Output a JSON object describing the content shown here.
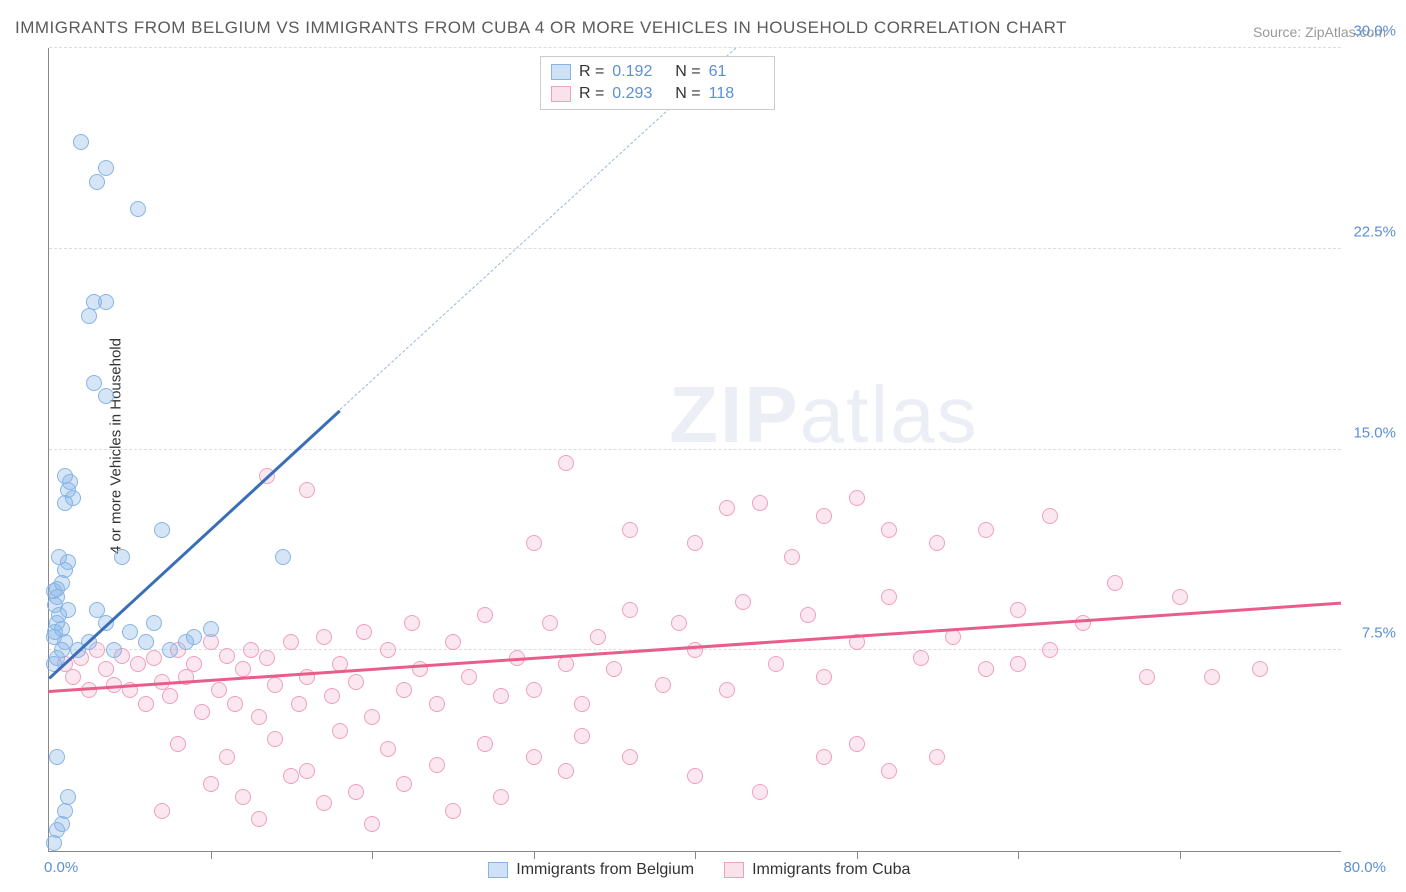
{
  "title": "IMMIGRANTS FROM BELGIUM VS IMMIGRANTS FROM CUBA 4 OR MORE VEHICLES IN HOUSEHOLD CORRELATION CHART",
  "source": "Source: ZipAtlas.com",
  "watermark": {
    "prefix": "ZIP",
    "suffix": "atlas"
  },
  "chart": {
    "type": "scatter",
    "xlim": [
      0,
      80
    ],
    "ylim": [
      0,
      30
    ],
    "x_min_label": "0.0%",
    "x_max_label": "80.0%",
    "y_ticks": [
      7.5,
      15.0,
      22.5,
      30.0
    ],
    "y_tick_labels": [
      "7.5%",
      "15.0%",
      "22.5%",
      "30.0%"
    ],
    "x_tick_step": 10,
    "y_axis_title": "4 or more Vehicles in Household",
    "background_color": "#ffffff",
    "grid_color": "#dddddd",
    "axis_color": "#888888",
    "label_color": "#5b8fd6",
    "label_fontsize": 15,
    "title_color": "#5a5a5a",
    "title_fontsize": 17
  },
  "series": {
    "belgium": {
      "label": "Immigrants from Belgium",
      "R": "0.192",
      "N": "61",
      "marker_fill": "rgba(135,180,230,0.35)",
      "marker_stroke": "#87b4e6",
      "trend_color": "#3a6fb7",
      "trend_dash_color": "#9ab8dc",
      "trend_solid": {
        "x1": 0,
        "y1": 6.5,
        "x2": 18,
        "y2": 16.5
      },
      "trend_dash": {
        "x1": 18,
        "y1": 16.5,
        "x2": 42.5,
        "y2": 30
      },
      "points": [
        [
          0.3,
          0.3
        ],
        [
          0.5,
          0.8
        ],
        [
          0.8,
          1.0
        ],
        [
          1.0,
          1.5
        ],
        [
          1.2,
          2.0
        ],
        [
          0.5,
          3.5
        ],
        [
          0.3,
          7.0
        ],
        [
          0.5,
          7.2
        ],
        [
          0.8,
          7.5
        ],
        [
          1.0,
          7.8
        ],
        [
          0.5,
          8.5
        ],
        [
          0.6,
          8.8
        ],
        [
          0.4,
          8.2
        ],
        [
          0.3,
          8.0
        ],
        [
          0.8,
          8.3
        ],
        [
          1.2,
          9.0
        ],
        [
          0.5,
          9.5
        ],
        [
          0.8,
          10.0
        ],
        [
          1.0,
          10.5
        ],
        [
          1.2,
          10.8
        ],
        [
          0.6,
          11.0
        ],
        [
          0.5,
          9.8
        ],
        [
          0.4,
          9.2
        ],
        [
          0.3,
          9.7
        ],
        [
          1.0,
          13.0
        ],
        [
          1.2,
          13.5
        ],
        [
          1.5,
          13.2
        ],
        [
          1.0,
          14.0
        ],
        [
          1.3,
          13.8
        ],
        [
          1.8,
          7.5
        ],
        [
          2.5,
          7.8
        ],
        [
          3.0,
          9.0
        ],
        [
          3.5,
          8.5
        ],
        [
          4.0,
          7.5
        ],
        [
          5.0,
          8.2
        ],
        [
          4.5,
          11.0
        ],
        [
          6.0,
          7.8
        ],
        [
          6.5,
          8.5
        ],
        [
          7.0,
          12.0
        ],
        [
          7.5,
          7.5
        ],
        [
          8.5,
          7.8
        ],
        [
          9.0,
          8.0
        ],
        [
          10.0,
          8.3
        ],
        [
          3.5,
          17.0
        ],
        [
          2.8,
          17.5
        ],
        [
          2.5,
          20.0
        ],
        [
          2.8,
          20.5
        ],
        [
          3.5,
          20.5
        ],
        [
          3.0,
          25.0
        ],
        [
          3.5,
          25.5
        ],
        [
          5.5,
          24.0
        ],
        [
          2.0,
          26.5
        ],
        [
          14.5,
          11.0
        ]
      ]
    },
    "cuba": {
      "label": "Immigrants from Cuba",
      "R": "0.293",
      "N": "118",
      "marker_fill": "rgba(240,160,190,0.25)",
      "marker_stroke": "#f0a0be",
      "trend_color": "#e85d8a",
      "trend": {
        "x1": 0,
        "y1": 6.0,
        "x2": 80,
        "y2": 9.3
      },
      "points": [
        [
          1.0,
          7.0
        ],
        [
          1.5,
          6.5
        ],
        [
          2.0,
          7.2
        ],
        [
          2.5,
          6.0
        ],
        [
          3.0,
          7.5
        ],
        [
          3.5,
          6.8
        ],
        [
          4.0,
          6.2
        ],
        [
          4.5,
          7.3
        ],
        [
          5.0,
          6.0
        ],
        [
          5.5,
          7.0
        ],
        [
          6.0,
          5.5
        ],
        [
          6.5,
          7.2
        ],
        [
          7.0,
          6.3
        ],
        [
          7.5,
          5.8
        ],
        [
          8.0,
          7.5
        ],
        [
          8.5,
          6.5
        ],
        [
          9.0,
          7.0
        ],
        [
          9.5,
          5.2
        ],
        [
          10.0,
          7.8
        ],
        [
          10.5,
          6.0
        ],
        [
          11.0,
          7.3
        ],
        [
          11.5,
          5.5
        ],
        [
          12.0,
          6.8
        ],
        [
          12.5,
          7.5
        ],
        [
          13.0,
          5.0
        ],
        [
          13.5,
          7.2
        ],
        [
          14.0,
          6.2
        ],
        [
          15.0,
          7.8
        ],
        [
          15.5,
          5.5
        ],
        [
          16.0,
          6.5
        ],
        [
          17.0,
          8.0
        ],
        [
          17.5,
          5.8
        ],
        [
          18.0,
          7.0
        ],
        [
          19.0,
          6.3
        ],
        [
          19.5,
          8.2
        ],
        [
          20.0,
          5.0
        ],
        [
          21.0,
          7.5
        ],
        [
          22.0,
          6.0
        ],
        [
          22.5,
          8.5
        ],
        [
          23.0,
          6.8
        ],
        [
          24.0,
          5.5
        ],
        [
          25.0,
          7.8
        ],
        [
          26.0,
          6.5
        ],
        [
          27.0,
          8.8
        ],
        [
          28.0,
          5.8
        ],
        [
          29.0,
          7.2
        ],
        [
          30.0,
          6.0
        ],
        [
          31.0,
          8.5
        ],
        [
          32.0,
          7.0
        ],
        [
          33.0,
          5.5
        ],
        [
          34.0,
          8.0
        ],
        [
          35.0,
          6.8
        ],
        [
          36.0,
          9.0
        ],
        [
          38.0,
          6.2
        ],
        [
          39.0,
          8.5
        ],
        [
          40.0,
          7.5
        ],
        [
          42.0,
          6.0
        ],
        [
          43.0,
          9.3
        ],
        [
          45.0,
          7.0
        ],
        [
          47.0,
          8.8
        ],
        [
          48.0,
          6.5
        ],
        [
          50.0,
          7.8
        ],
        [
          52.0,
          9.5
        ],
        [
          54.0,
          7.2
        ],
        [
          56.0,
          8.0
        ],
        [
          58.0,
          6.8
        ],
        [
          60.0,
          9.0
        ],
        [
          62.0,
          7.5
        ],
        [
          64.0,
          8.5
        ],
        [
          66.0,
          10.0
        ],
        [
          7.0,
          1.5
        ],
        [
          10.0,
          2.5
        ],
        [
          12.0,
          2.0
        ],
        [
          13.0,
          1.2
        ],
        [
          15.0,
          2.8
        ],
        [
          17.0,
          1.8
        ],
        [
          19.0,
          2.2
        ],
        [
          20.0,
          1.0
        ],
        [
          22.0,
          2.5
        ],
        [
          25.0,
          1.5
        ],
        [
          28.0,
          2.0
        ],
        [
          8.0,
          4.0
        ],
        [
          11.0,
          3.5
        ],
        [
          14.0,
          4.2
        ],
        [
          16.0,
          3.0
        ],
        [
          18.0,
          4.5
        ],
        [
          21.0,
          3.8
        ],
        [
          24.0,
          3.2
        ],
        [
          27.0,
          4.0
        ],
        [
          30.0,
          3.5
        ],
        [
          33.0,
          4.3
        ],
        [
          13.5,
          14.0
        ],
        [
          16.0,
          13.5
        ],
        [
          30.0,
          11.5
        ],
        [
          32.0,
          14.5
        ],
        [
          36.0,
          12.0
        ],
        [
          40.0,
          11.5
        ],
        [
          42.0,
          12.8
        ],
        [
          44.0,
          13.0
        ],
        [
          46.0,
          11.0
        ],
        [
          48.0,
          12.5
        ],
        [
          50.0,
          13.2
        ],
        [
          52.0,
          12.0
        ],
        [
          55.0,
          11.5
        ],
        [
          58.0,
          12.0
        ],
        [
          62.0,
          12.5
        ],
        [
          48.0,
          3.5
        ],
        [
          50.0,
          4.0
        ],
        [
          52.0,
          3.0
        ],
        [
          55.0,
          3.5
        ],
        [
          32.0,
          3.0
        ],
        [
          36.0,
          3.5
        ],
        [
          40.0,
          2.8
        ],
        [
          44.0,
          2.2
        ],
        [
          60.0,
          7.0
        ],
        [
          72.0,
          6.5
        ],
        [
          75.0,
          6.8
        ],
        [
          70.0,
          9.5
        ],
        [
          68.0,
          6.5
        ]
      ]
    }
  },
  "legend": {
    "r_label": "R =",
    "n_label": "N ="
  }
}
